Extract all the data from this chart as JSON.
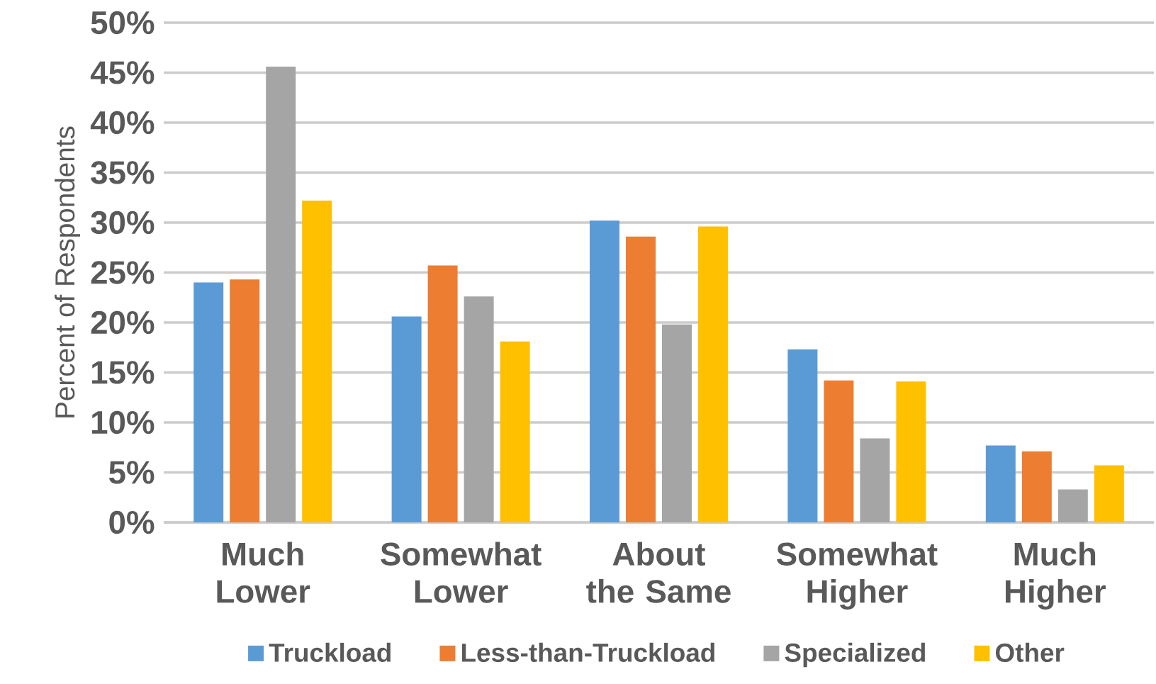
{
  "chart_data": {
    "type": "bar",
    "ylabel": "Percent of Respondents",
    "categories": [
      "Much Lower",
      "Somewhat Lower",
      "About the Same",
      "Somewhat Higher",
      "Much Higher"
    ],
    "series": [
      {
        "name": "Truckload",
        "color": "#5b9bd5",
        "values": [
          24.0,
          20.6,
          30.2,
          17.3,
          7.7
        ]
      },
      {
        "name": "Less-than-Truckload",
        "color": "#ed7d31",
        "values": [
          24.3,
          25.7,
          28.6,
          14.2,
          7.1
        ]
      },
      {
        "name": "Specialized",
        "color": "#a5a5a5",
        "values": [
          45.6,
          22.6,
          19.8,
          8.4,
          3.3
        ]
      },
      {
        "name": "Other",
        "color": "#ffc000",
        "values": [
          32.2,
          18.1,
          29.6,
          14.1,
          5.7
        ]
      }
    ],
    "ylim": [
      0,
      50
    ],
    "yticks": [
      {
        "value": 0,
        "label": "0%"
      },
      {
        "value": 5,
        "label": "5%"
      },
      {
        "value": 10,
        "label": "10%"
      },
      {
        "value": 15,
        "label": "15%"
      },
      {
        "value": 20,
        "label": "20%"
      },
      {
        "value": 25,
        "label": "25%"
      },
      {
        "value": 30,
        "label": "30%"
      },
      {
        "value": 35,
        "label": "35%"
      },
      {
        "value": 40,
        "label": "40%"
      },
      {
        "value": 45,
        "label": "45%"
      },
      {
        "value": 50,
        "label": "50%"
      }
    ],
    "grid": "y",
    "legend": "bottom"
  }
}
